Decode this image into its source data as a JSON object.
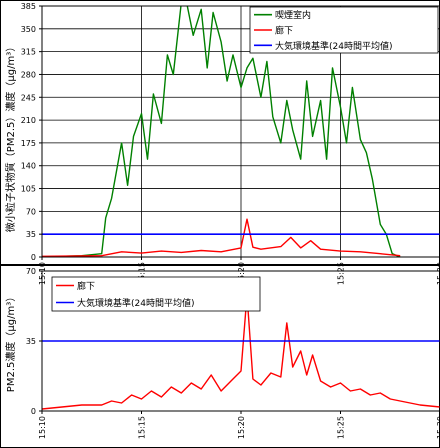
{
  "chart_data": [
    {
      "type": "line",
      "ylabel": "微小粒子状物質（PM2.5）濃度（μg/m³）",
      "ylim": [
        0,
        385
      ],
      "yticks": [
        0,
        35,
        70,
        105,
        140,
        175,
        210,
        245,
        280,
        315,
        350,
        385
      ],
      "xlim": [
        "15:10",
        "15:30"
      ],
      "xticks": [
        "15:10",
        "15:15",
        "15:20",
        "15:25",
        "15:30"
      ],
      "grid": true,
      "legend_position": "top-right",
      "series": [
        {
          "name": "喫煙室内",
          "color": "#008000",
          "x": [
            "15:10",
            "15:12",
            "15:13",
            "15:13.2",
            "15:13.5",
            "15:14",
            "15:14.3",
            "15:14.6",
            "15:15",
            "15:15.3",
            "15:15.6",
            "15:16",
            "15:16.3",
            "15:16.6",
            "15:17",
            "15:17.3",
            "15:17.6",
            "15:18",
            "15:18.3",
            "15:18.6",
            "15:19",
            "15:19.3",
            "15:19.6",
            "15:20",
            "15:20.3",
            "15:20.6",
            "15:21",
            "15:21.3",
            "15:21.6",
            "15:22",
            "15:22.3",
            "15:22.6",
            "15:23",
            "15:23.3",
            "15:23.6",
            "15:24",
            "15:24.3",
            "15:24.6",
            "15:25",
            "15:25.3",
            "15:25.6",
            "15:26",
            "15:26.3",
            "15:26.6",
            "15:27",
            "15:27.3",
            "15:27.6",
            "15:28"
          ],
          "y": [
            0,
            2,
            5,
            60,
            90,
            175,
            110,
            185,
            220,
            150,
            250,
            205,
            310,
            280,
            390,
            385,
            340,
            380,
            290,
            375,
            330,
            270,
            310,
            260,
            290,
            305,
            245,
            300,
            215,
            175,
            240,
            195,
            150,
            270,
            185,
            240,
            150,
            290,
            230,
            175,
            260,
            180,
            160,
            120,
            50,
            35,
            5,
            0
          ]
        },
        {
          "name": "廊下",
          "color": "#ff0000",
          "x": [
            "15:10",
            "15:13",
            "15:14",
            "15:15",
            "15:16",
            "15:17",
            "15:18",
            "15:19",
            "15:20",
            "15:20.3",
            "15:20.6",
            "15:21",
            "15:22",
            "15:22.5",
            "15:23",
            "15:23.5",
            "15:24",
            "15:25",
            "15:26",
            "15:27",
            "15:28"
          ],
          "y": [
            1,
            2,
            8,
            6,
            9,
            7,
            10,
            8,
            14,
            58,
            15,
            12,
            16,
            30,
            14,
            25,
            12,
            9,
            8,
            5,
            2
          ]
        },
        {
          "name": "大気環境基準(24時間平均値)",
          "color": "#0000ff",
          "x": [
            "15:10",
            "15:30"
          ],
          "y": [
            35,
            35
          ]
        }
      ]
    },
    {
      "type": "line",
      "ylabel": "PM2.5濃度（μg/m³）",
      "ylim": [
        0,
        70
      ],
      "yticks": [
        0,
        35,
        70
      ],
      "xlim": [
        "15:10",
        "15:30"
      ],
      "xticks": [
        "15:10",
        "15:15",
        "15:20",
        "15:25",
        "15:30"
      ],
      "grid": false,
      "legend_position": "top-left",
      "series": [
        {
          "name": "廊下",
          "color": "#ff0000",
          "x": [
            "15:10",
            "15:11",
            "15:12",
            "15:13",
            "15:13.5",
            "15:14",
            "15:14.5",
            "15:15",
            "15:15.5",
            "15:16",
            "15:16.5",
            "15:17",
            "15:17.5",
            "15:18",
            "15:18.5",
            "15:19",
            "15:19.5",
            "15:20",
            "15:20.3",
            "15:20.6",
            "15:21",
            "15:21.5",
            "15:22",
            "15:22.3",
            "15:22.6",
            "15:23",
            "15:23.3",
            "15:23.6",
            "15:24",
            "15:24.5",
            "15:25",
            "15:25.5",
            "15:26",
            "15:26.5",
            "15:27",
            "15:27.5",
            "15:28",
            "15:29",
            "15:30"
          ],
          "y": [
            1,
            2,
            3,
            3,
            5,
            4,
            8,
            6,
            10,
            7,
            12,
            9,
            14,
            11,
            18,
            10,
            15,
            20,
            58,
            16,
            13,
            19,
            17,
            44,
            22,
            30,
            18,
            28,
            15,
            12,
            14,
            10,
            11,
            8,
            9,
            6,
            5,
            3,
            2
          ]
        },
        {
          "name": "大気環境基準(24時間平均値)",
          "color": "#0000ff",
          "x": [
            "15:10",
            "15:30"
          ],
          "y": [
            35,
            35
          ]
        }
      ]
    }
  ]
}
